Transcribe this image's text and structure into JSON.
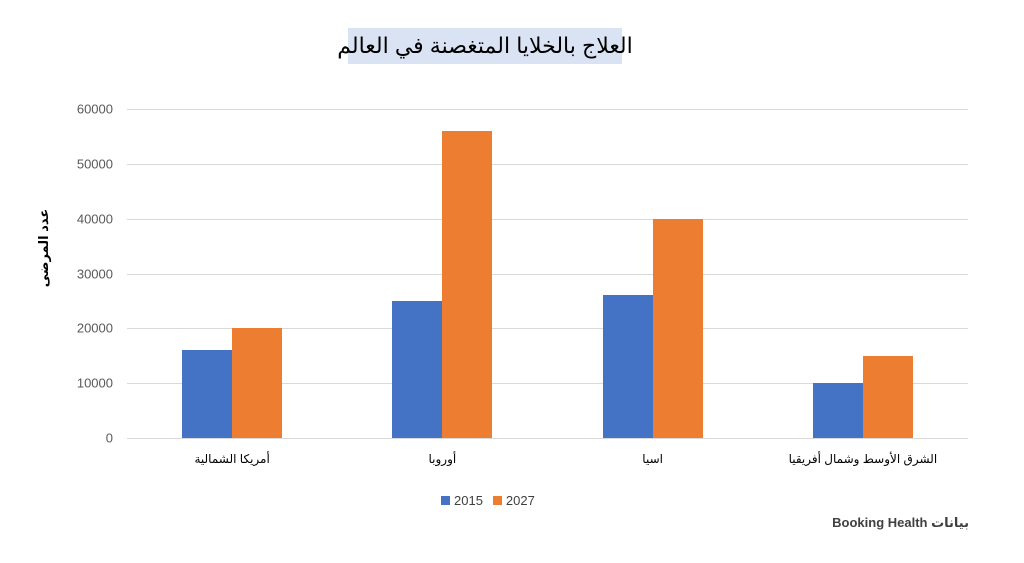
{
  "title": "العلاج بالخلايا المتغصنة في العالم",
  "source_note": "بيانات Booking Health",
  "colors": {
    "series_2015": "#4472c4",
    "series_2027": "#ed7d31",
    "title_bg": "#dae3f3",
    "grid": "#d9d9d9"
  },
  "chart_data": {
    "type": "bar",
    "title": "العلاج بالخلايا المتغصنة في العالم",
    "xlabel": "",
    "ylabel": "عدد المرضى",
    "ylim": [
      0,
      60000
    ],
    "yticks": [
      0,
      10000,
      20000,
      30000,
      40000,
      50000,
      60000
    ],
    "ytick_labels": [
      "0",
      "10000",
      "20000",
      "30000",
      "40000",
      "50000",
      "60000"
    ],
    "grid": true,
    "legend_position": "bottom",
    "categories": [
      "أمريكا الشمالية",
      "أوروبا",
      "اسيا",
      "الشرق الأوسط وشمال أفريقيا"
    ],
    "series": [
      {
        "name": "2015",
        "color": "#4472c4",
        "values": [
          16000,
          25000,
          26000,
          10000
        ]
      },
      {
        "name": "2027",
        "color": "#ed7d31",
        "values": [
          20000,
          56000,
          40000,
          15000
        ]
      }
    ]
  }
}
